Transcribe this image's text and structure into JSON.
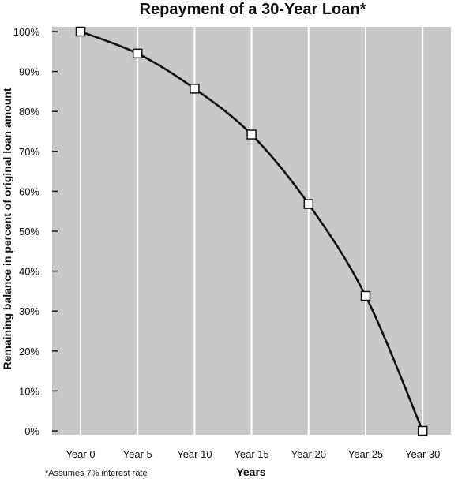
{
  "chart_data": {
    "type": "line",
    "title": "Repayment of a 30-Year Loan*",
    "xlabel": "Years",
    "ylabel": "Remaining balance in percent of original loan amount",
    "categories": [
      "Year 0",
      "Year 5",
      "Year 10",
      "Year 15",
      "Year 20",
      "Year 25",
      "Year 30"
    ],
    "series": [
      {
        "values": [
          100,
          94.5,
          85.7,
          74.2,
          56.8,
          33.8,
          0
        ]
      }
    ],
    "y_ticks": [
      "0%",
      "10%",
      "20%",
      "30%",
      "40%",
      "50%",
      "60%",
      "70%",
      "80%",
      "90%",
      "100%"
    ],
    "ylim": [
      0,
      100
    ],
    "grid": "vertical",
    "marker": "square",
    "footnote": "*Assumes 7% interest rate",
    "colors": {
      "plot_background": "#c8c8c8",
      "line": "#111111",
      "grid": "#ffffff",
      "marker_fill": "#ffffff"
    }
  }
}
